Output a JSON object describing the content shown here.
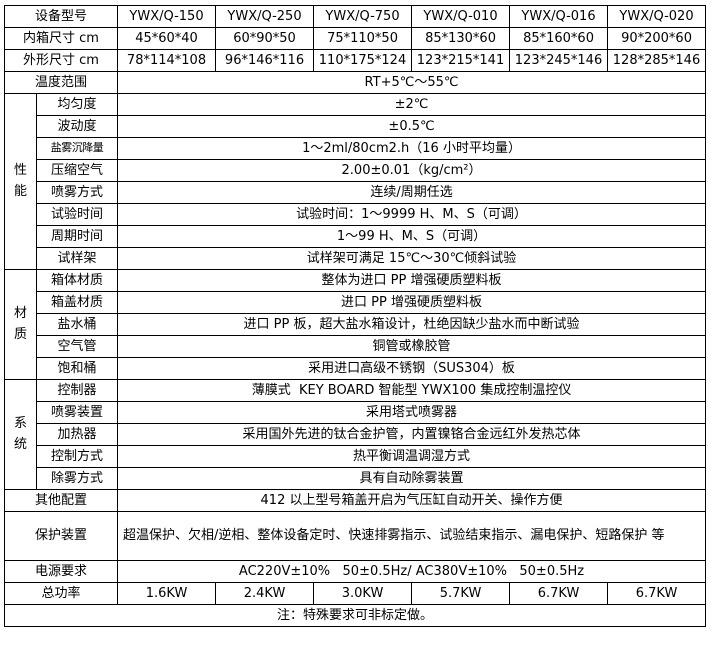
{
  "page": {
    "note": "注：特殊要求可非标定做。"
  },
  "colors": {
    "border": "#000000",
    "text": "#000000",
    "background": "#ffffff"
  },
  "table": {
    "models_row": {
      "label": "设备型号",
      "values": [
        "YWX/Q-150",
        "YWX/Q-250",
        "YWX/Q-750",
        "YWX/Q-010",
        "YWX/Q-016",
        "YWX/Q-020"
      ]
    },
    "inner_size_row": {
      "label": "内箱尺寸 cm",
      "values": [
        "45*60*40",
        "60*90*50",
        "75*110*50",
        "85*130*60",
        "85*160*60",
        "90*200*60"
      ]
    },
    "outer_size_row": {
      "label": "外形尺寸 cm",
      "values": [
        "78*114*108",
        "96*146*116",
        "110*175*124",
        "123*215*141",
        "123*245*146",
        "128*285*146"
      ]
    },
    "temp_range_row": {
      "label": "温度范围",
      "value": "RT+5℃～55℃"
    },
    "performance": {
      "group_label": "性能",
      "rows": [
        {
          "label": "均匀度",
          "value": "±2℃"
        },
        {
          "label": "波动度",
          "value": "±0.5℃"
        },
        {
          "label": "盐雾沉降量",
          "value": "1～2ml/80cm2.h（16 小时平均量）"
        },
        {
          "label": "压缩空气",
          "value": "2.00±0.01（kg/cm²）"
        },
        {
          "label": "喷雾方式",
          "value": "连续/周期任选"
        },
        {
          "label": "试验时间",
          "value": "试验时间：1～9999 H、M、S（可调）"
        },
        {
          "label": "周期时间",
          "value": "1～99 H、M、S（可调）"
        },
        {
          "label": "试样架",
          "value": "试样架可满足 15℃～30℃倾斜试验"
        }
      ]
    },
    "material": {
      "group_label": "材质",
      "rows": [
        {
          "label": "箱体材质",
          "value": "整体为进口 PP 增强硬质塑料板"
        },
        {
          "label": "箱盖材质",
          "value": "进口 PP 增强硬质塑料板"
        },
        {
          "label": "盐水桶",
          "value": "进口 PP 板，超大盐水箱设计，杜绝因缺少盐水而中断试验"
        },
        {
          "label": "空气管",
          "value": "铜管或橡胶管"
        },
        {
          "label": "饱和桶",
          "value": "采用进口高级不锈钢（SUS304）板"
        }
      ]
    },
    "system": {
      "group_label": "系统",
      "rows": [
        {
          "label": "控制器",
          "value": "薄膜式  KEY BOARD 智能型 YWX100 集成控制温控仪"
        },
        {
          "label": "喷雾装置",
          "value": "采用塔式喷雾器"
        },
        {
          "label": "加热器",
          "value": "采用国外先进的钛合金护管，内置镍铬合金远红外发热芯体"
        },
        {
          "label": "控制方式",
          "value": "热平衡调温调湿方式"
        },
        {
          "label": "除雾方式",
          "value": "具有自动除雾装置"
        }
      ]
    },
    "other_config_row": {
      "label": "其他配置",
      "value": "412 以上型号箱盖开启为气压缸自动开关、操作方便"
    },
    "protection_row": {
      "label": "保护装置",
      "value": "超温保护、欠相/逆相、整体设备定时、快速排雾指示、试验结束指示、漏电保护、短路保护 等"
    },
    "power_row": {
      "label": "电源要求",
      "value": "AC220V±10%   50±0.5Hz/ AC380V±10%   50±0.5Hz"
    },
    "total_power_row": {
      "label": "总功率",
      "values": [
        "1.6KW",
        "2.4KW",
        "3.0KW",
        "5.7KW",
        "6.7KW",
        "6.7KW"
      ]
    }
  }
}
